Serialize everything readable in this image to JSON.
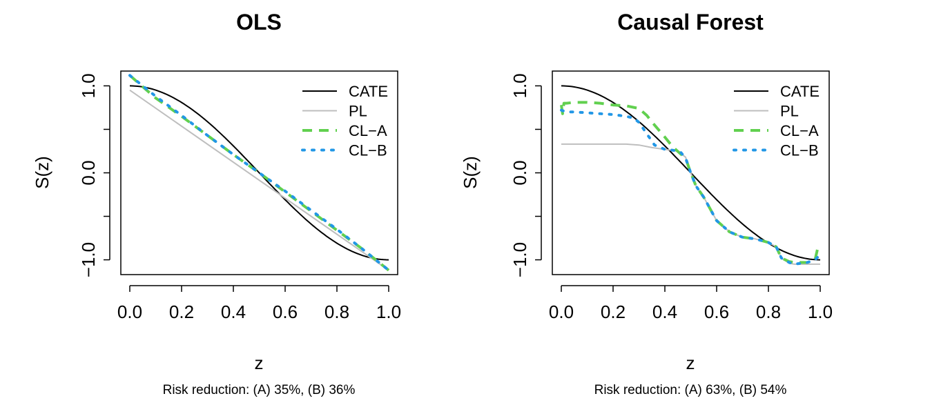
{
  "colors": {
    "CATE": "#000000",
    "PL": "#bebebe",
    "CL-A": "#61d04f",
    "CL-B": "#2297e6"
  },
  "chart_data": [
    {
      "type": "line",
      "title": "OLS",
      "xlabel": "z",
      "ylabel": "S(z)",
      "caption": "Risk reduction: (A) 35%, (B) 36%",
      "xlim": [
        0,
        1
      ],
      "ylim": [
        -1.17,
        1.17
      ],
      "xticks": [
        0.0,
        0.2,
        0.4,
        0.6,
        0.8,
        1.0
      ],
      "xtick_labels": [
        "0.0",
        "0.2",
        "0.4",
        "0.6",
        "0.8",
        "1.0"
      ],
      "yticks": [
        -1.0,
        -0.5,
        0.0,
        0.5,
        1.0
      ],
      "ytick_labels": [
        "-1.0",
        "",
        "0.0",
        "",
        "1.0"
      ],
      "legend_position": "top-right",
      "grid": false,
      "series": [
        {
          "name": "CATE",
          "style": "solid",
          "function": "cos_pi_z"
        },
        {
          "name": "PL",
          "style": "solid",
          "x": [
            0,
            1
          ],
          "y": [
            0.95,
            -1.12
          ]
        },
        {
          "name": "CL-A",
          "style": "dashed",
          "x": [
            0,
            0.1,
            0.2,
            0.3,
            0.4,
            0.5,
            0.6,
            0.7,
            0.8,
            0.9,
            1.0
          ],
          "y": [
            1.12,
            0.86,
            0.65,
            0.43,
            0.21,
            0.0,
            -0.22,
            -0.44,
            -0.66,
            -0.88,
            -1.12
          ]
        },
        {
          "name": "CL-B",
          "style": "dotted",
          "x": [
            0,
            0.1,
            0.2,
            0.3,
            0.4,
            0.5,
            0.6,
            0.7,
            0.8,
            0.9,
            1.0
          ],
          "y": [
            1.12,
            0.88,
            0.66,
            0.43,
            0.21,
            0.0,
            -0.21,
            -0.43,
            -0.65,
            -0.88,
            -1.12
          ]
        }
      ]
    },
    {
      "type": "line",
      "title": "Causal Forest",
      "xlabel": "z",
      "ylabel": "S(z)",
      "caption": "Risk reduction: (A) 63%, (B) 54%",
      "xlim": [
        0,
        1
      ],
      "ylim": [
        -1.17,
        1.17
      ],
      "xticks": [
        0.0,
        0.2,
        0.4,
        0.6,
        0.8,
        1.0
      ],
      "xtick_labels": [
        "0.0",
        "0.2",
        "0.4",
        "0.6",
        "0.8",
        "1.0"
      ],
      "yticks": [
        -1.0,
        -0.5,
        0.0,
        0.5,
        1.0
      ],
      "ytick_labels": [
        "-1.0",
        "",
        "0.0",
        "",
        "1.0"
      ],
      "legend_position": "top-right",
      "grid": false,
      "series": [
        {
          "name": "CATE",
          "style": "solid",
          "function": "cos_pi_z"
        },
        {
          "name": "PL",
          "style": "solid",
          "x": [
            0,
            0.1,
            0.2,
            0.25,
            0.3,
            0.35,
            0.4,
            0.45,
            0.48,
            0.5,
            0.52,
            0.55,
            0.6,
            0.65,
            0.7,
            0.75,
            0.8,
            0.83,
            0.85,
            0.88,
            0.9,
            0.95,
            1.0
          ],
          "y": [
            0.33,
            0.33,
            0.33,
            0.33,
            0.32,
            0.29,
            0.27,
            0.25,
            0.18,
            0.0,
            -0.15,
            -0.28,
            -0.55,
            -0.68,
            -0.74,
            -0.76,
            -0.8,
            -0.85,
            -0.98,
            -1.04,
            -1.05,
            -1.05,
            -1.05
          ]
        },
        {
          "name": "CL-A",
          "style": "dashed",
          "x": [
            0,
            0.005,
            0.01,
            0.02,
            0.05,
            0.1,
            0.15,
            0.2,
            0.25,
            0.3,
            0.33,
            0.36,
            0.4,
            0.43,
            0.46,
            0.48,
            0.5,
            0.52,
            0.55,
            0.6,
            0.65,
            0.7,
            0.75,
            0.8,
            0.83,
            0.85,
            0.88,
            0.9,
            0.95,
            0.98,
            0.99,
            1.0
          ],
          "y": [
            0.78,
            0.68,
            0.8,
            0.8,
            0.81,
            0.81,
            0.8,
            0.78,
            0.77,
            0.74,
            0.66,
            0.55,
            0.41,
            0.3,
            0.22,
            0.17,
            0.0,
            -0.15,
            -0.28,
            -0.55,
            -0.68,
            -0.74,
            -0.76,
            -0.8,
            -0.85,
            -0.98,
            -1.02,
            -1.03,
            -1.03,
            -1.0,
            -0.87,
            -0.85
          ]
        },
        {
          "name": "CL-B",
          "style": "dotted",
          "x": [
            0,
            0.02,
            0.05,
            0.1,
            0.15,
            0.2,
            0.25,
            0.28,
            0.3,
            0.33,
            0.36,
            0.4,
            0.43,
            0.46,
            0.48,
            0.5,
            0.52,
            0.55,
            0.6,
            0.65,
            0.7,
            0.75,
            0.8,
            0.83,
            0.85,
            0.88,
            0.9,
            0.95,
            0.98,
            0.99,
            1.0
          ],
          "y": [
            0.72,
            0.7,
            0.7,
            0.69,
            0.68,
            0.67,
            0.65,
            0.63,
            0.58,
            0.45,
            0.32,
            0.27,
            0.26,
            0.24,
            0.17,
            0.0,
            -0.15,
            -0.28,
            -0.55,
            -0.68,
            -0.74,
            -0.76,
            -0.8,
            -0.85,
            -0.98,
            -1.03,
            -1.05,
            -1.03,
            -1.0,
            -0.97,
            -0.95
          ]
        }
      ]
    }
  ]
}
